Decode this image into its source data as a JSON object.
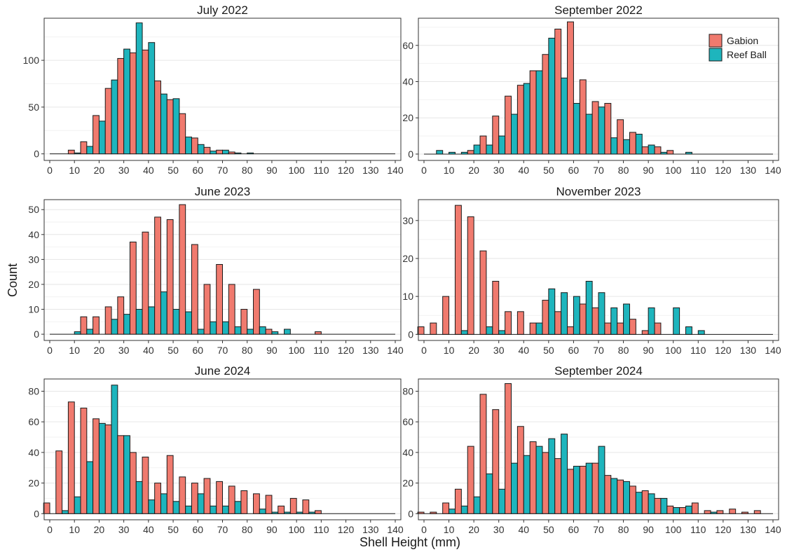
{
  "figure": {
    "xlabel": "Shell Height (mm)",
    "ylabel": "Count",
    "legend": [
      {
        "name": "Gabion",
        "color": "#F07A6E"
      },
      {
        "name": "Reef Ball",
        "color": "#1EB5BD"
      }
    ]
  },
  "chart_data": [
    {
      "type": "bar",
      "title": "July 2022",
      "bin_width": 5,
      "x": [
        0,
        5,
        10,
        15,
        20,
        25,
        30,
        35,
        40,
        45,
        50,
        55,
        60,
        65,
        70,
        75,
        80,
        85,
        90,
        95,
        100,
        105,
        110,
        115,
        120,
        125,
        130,
        135,
        140
      ],
      "series": [
        {
          "name": "Gabion",
          "values": [
            0,
            0,
            4,
            13,
            41,
            70,
            102,
            108,
            111,
            78,
            58,
            43,
            17,
            7,
            4,
            2,
            0,
            0,
            0,
            0,
            0,
            0,
            0,
            0,
            0,
            0,
            0,
            0,
            0
          ]
        },
        {
          "name": "Reef Ball",
          "values": [
            0,
            0,
            1,
            8,
            35,
            79,
            112,
            140,
            119,
            64,
            59,
            18,
            10,
            3,
            4,
            1,
            1,
            0,
            0,
            0,
            0,
            0,
            0,
            0,
            0,
            0,
            0,
            0,
            0
          ]
        }
      ],
      "xlim": [
        0,
        140
      ],
      "xticks": [
        0,
        10,
        20,
        30,
        40,
        50,
        60,
        70,
        80,
        90,
        100,
        110,
        120,
        130,
        140
      ],
      "ylim": [
        -7,
        145
      ],
      "yticks": [
        0,
        50,
        100
      ]
    },
    {
      "type": "bar",
      "title": "September 2022",
      "bin_width": 5,
      "x": [
        0,
        5,
        10,
        15,
        20,
        25,
        30,
        35,
        40,
        45,
        50,
        55,
        60,
        65,
        70,
        75,
        80,
        85,
        90,
        95,
        100,
        105,
        110,
        115,
        120,
        125,
        130,
        135,
        140
      ],
      "series": [
        {
          "name": "Gabion",
          "values": [
            0,
            0,
            0,
            0,
            2,
            10,
            21,
            32,
            38,
            46,
            55,
            69,
            73,
            41,
            29,
            28,
            19,
            12,
            4,
            4,
            2,
            0,
            0,
            0,
            0,
            0,
            0,
            0,
            0
          ]
        },
        {
          "name": "Reef Ball",
          "values": [
            0,
            2,
            1,
            1,
            5,
            5,
            10,
            22,
            39,
            46,
            64,
            42,
            28,
            22,
            26,
            9,
            8,
            11,
            5,
            1,
            0,
            1,
            0,
            0,
            0,
            0,
            0,
            0,
            0
          ]
        }
      ],
      "xlim": [
        0,
        140
      ],
      "xticks": [
        0,
        10,
        20,
        30,
        40,
        50,
        60,
        70,
        80,
        90,
        100,
        110,
        120,
        130,
        140
      ],
      "ylim": [
        -3.5,
        75
      ],
      "yticks": [
        0,
        20,
        40,
        60
      ]
    },
    {
      "type": "bar",
      "title": "June 2023",
      "bin_width": 5,
      "x": [
        0,
        5,
        10,
        15,
        20,
        25,
        30,
        35,
        40,
        45,
        50,
        55,
        60,
        65,
        70,
        75,
        80,
        85,
        90,
        95,
        100,
        105,
        110,
        115,
        120,
        125,
        130,
        135,
        140
      ],
      "series": [
        {
          "name": "Gabion",
          "values": [
            0,
            0,
            0,
            7,
            7,
            11,
            15,
            37,
            41,
            47,
            46,
            52,
            36,
            20,
            28,
            20,
            10,
            18,
            2,
            0,
            0,
            0,
            1,
            0,
            0,
            0,
            0,
            0,
            0
          ]
        },
        {
          "name": "Reef Ball",
          "values": [
            0,
            0,
            1,
            2,
            0,
            6,
            8,
            10,
            11,
            17,
            10,
            9,
            2,
            5,
            5,
            3,
            2,
            3,
            1,
            2,
            0,
            0,
            0,
            0,
            0,
            0,
            0,
            0,
            0
          ]
        }
      ],
      "xlim": [
        0,
        140
      ],
      "xticks": [
        0,
        10,
        20,
        30,
        40,
        50,
        60,
        70,
        80,
        90,
        100,
        110,
        120,
        130,
        140
      ],
      "ylim": [
        -2.5,
        54
      ],
      "yticks": [
        0,
        10,
        20,
        30,
        40,
        50
      ]
    },
    {
      "type": "bar",
      "title": "November 2023",
      "bin_width": 5,
      "x": [
        0,
        5,
        10,
        15,
        20,
        25,
        30,
        35,
        40,
        45,
        50,
        55,
        60,
        65,
        70,
        75,
        80,
        85,
        90,
        95,
        100,
        105,
        110,
        115,
        120,
        125,
        130,
        135,
        140
      ],
      "series": [
        {
          "name": "Gabion",
          "values": [
            2,
            3,
            10,
            34,
            31,
            22,
            14,
            6,
            6,
            3,
            9,
            6,
            2,
            8,
            7,
            3,
            3,
            4,
            1,
            3,
            0,
            0,
            0,
            0,
            0,
            0,
            0,
            0,
            0
          ]
        },
        {
          "name": "Reef Ball",
          "values": [
            0,
            0,
            0,
            1,
            0,
            2,
            1,
            0,
            0,
            3,
            12,
            11,
            10,
            14,
            11,
            7,
            8,
            0,
            7,
            0,
            7,
            2,
            1,
            0,
            0,
            0,
            0,
            0,
            0
          ]
        }
      ],
      "xlim": [
        0,
        140
      ],
      "xticks": [
        0,
        10,
        20,
        30,
        40,
        50,
        60,
        70,
        80,
        90,
        100,
        110,
        120,
        130,
        140
      ],
      "ylim": [
        -1.6,
        35.5
      ],
      "yticks": [
        0,
        10,
        20,
        30
      ]
    },
    {
      "type": "bar",
      "title": "June 2024",
      "bin_width": 5,
      "x": [
        0,
        5,
        10,
        15,
        20,
        25,
        30,
        35,
        40,
        45,
        50,
        55,
        60,
        65,
        70,
        75,
        80,
        85,
        90,
        95,
        100,
        105,
        110,
        115,
        120,
        125,
        130,
        135,
        140
      ],
      "series": [
        {
          "name": "Gabion",
          "values": [
            7,
            41,
            73,
            69,
            62,
            58,
            51,
            40,
            37,
            20,
            38,
            24,
            20,
            23,
            21,
            18,
            15,
            13,
            12,
            5,
            10,
            9,
            2,
            0,
            0,
            0,
            0,
            0,
            0
          ]
        },
        {
          "name": "Reef Ball",
          "values": [
            0,
            2,
            11,
            34,
            59,
            84,
            51,
            21,
            9,
            13,
            8,
            5,
            13,
            5,
            5,
            8,
            0,
            3,
            1,
            1,
            1,
            1,
            0,
            0,
            0,
            0,
            0,
            0,
            0
          ]
        }
      ],
      "xlim": [
        0,
        140
      ],
      "xticks": [
        0,
        10,
        20,
        30,
        40,
        50,
        60,
        70,
        80,
        90,
        100,
        110,
        120,
        130,
        140
      ],
      "ylim": [
        -4,
        88
      ],
      "yticks": [
        0,
        20,
        40,
        60,
        80
      ]
    },
    {
      "type": "bar",
      "title": "September 2024",
      "bin_width": 5,
      "x": [
        0,
        5,
        10,
        15,
        20,
        25,
        30,
        35,
        40,
        45,
        50,
        55,
        60,
        65,
        70,
        75,
        80,
        85,
        90,
        95,
        100,
        105,
        110,
        115,
        120,
        125,
        130,
        135,
        140
      ],
      "series": [
        {
          "name": "Gabion",
          "values": [
            1,
            1,
            7,
            16,
            44,
            78,
            68,
            85,
            57,
            47,
            40,
            36,
            29,
            31,
            33,
            25,
            22,
            18,
            15,
            10,
            5,
            4,
            7,
            2,
            2,
            3,
            1,
            2,
            0
          ]
        },
        {
          "name": "Reef Ball",
          "values": [
            0,
            0,
            3,
            5,
            11,
            26,
            16,
            33,
            38,
            44,
            49,
            52,
            31,
            33,
            44,
            23,
            21,
            14,
            13,
            10,
            4,
            5,
            0,
            1,
            0,
            0,
            0,
            0,
            0
          ]
        }
      ],
      "xlim": [
        0,
        140
      ],
      "xticks": [
        0,
        10,
        20,
        30,
        40,
        50,
        60,
        70,
        80,
        90,
        100,
        110,
        120,
        130,
        140
      ],
      "ylim": [
        -4,
        88
      ],
      "yticks": [
        0,
        20,
        40,
        60,
        80
      ]
    }
  ]
}
